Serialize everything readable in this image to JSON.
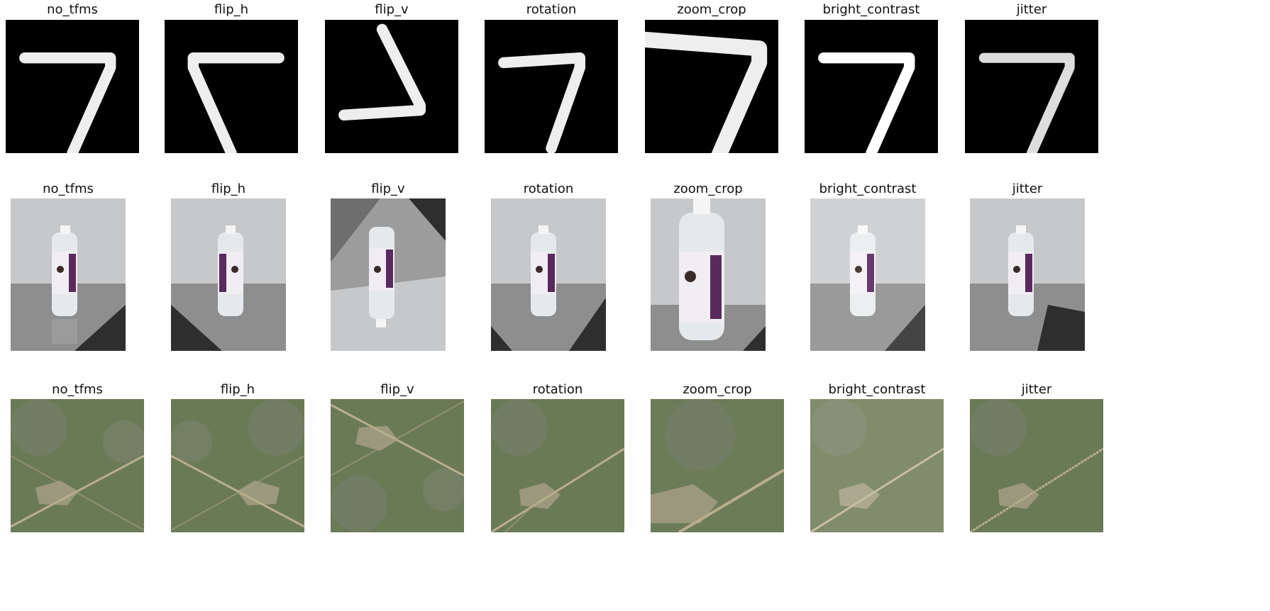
{
  "titles": [
    "no_tfms",
    "flip_h",
    "flip_v",
    "rotation",
    "zoom_crop",
    "bright_contrast",
    "jitter"
  ],
  "rows": [
    {
      "name": "mnist-row",
      "subject": "handwritten digit 7",
      "panels": [
        "no_tfms",
        "flip_h",
        "flip_v",
        "rotation",
        "zoom_crop",
        "bright_contrast",
        "jitter"
      ]
    },
    {
      "name": "bottle-row",
      "subject": "water bottle",
      "panels": [
        "no_tfms",
        "flip_h",
        "flip_v",
        "rotation",
        "zoom_crop",
        "bright_contrast",
        "jitter"
      ]
    },
    {
      "name": "satellite-row",
      "subject": "satellite imagery",
      "panels": [
        "no_tfms",
        "flip_h",
        "flip_v",
        "rotation",
        "zoom_crop",
        "bright_contrast",
        "jitter"
      ]
    }
  ],
  "colors": {
    "mnist_bg": "#000000",
    "mnist_fg": "#f2f2f2",
    "bottle_bg": "#c9cacc",
    "bottle_floor": "#8c8c8c",
    "bottle_label": "#5a2a5e",
    "sat_base": "#6b7b55",
    "sat_road": "#b8ad8c"
  }
}
